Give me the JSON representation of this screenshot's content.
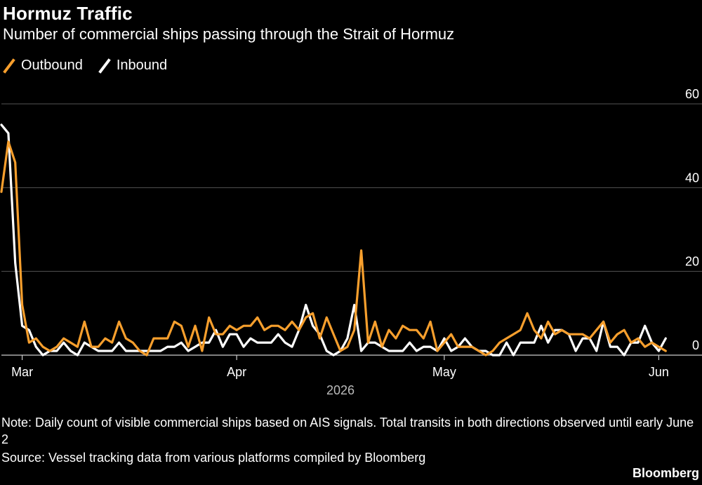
{
  "title": "Hormuz Traffic",
  "subtitle": "Number of commercial ships passing through the Strait of Hormuz",
  "note": "Note: Daily count of visible commercial ships based on AIS signals. Total transits in both directions observed until early June 2",
  "source": "Source: Vessel tracking data from various platforms compiled by Bloomberg",
  "brand": "Bloomberg",
  "colors": {
    "background": "#000000",
    "outbound": "#f79f2d",
    "inbound": "#ffffff",
    "grid": "#555555",
    "axis": "#cccccc"
  },
  "chart_data": {
    "type": "line",
    "title": "Hormuz Traffic",
    "subtitle": "Number of commercial ships passing through the Strait of Hormuz",
    "x_start": "2026-02-26",
    "x_end": "2026-06-04",
    "xtick_labels": [
      {
        "date": "2026-03-01",
        "label": "Mar"
      },
      {
        "date": "2026-04-01",
        "label": "Apr"
      },
      {
        "date": "2026-05-01",
        "label": "May"
      },
      {
        "date": "2026-06-01",
        "label": "Jun"
      }
    ],
    "year_label": "2026",
    "ylim": [
      0,
      60
    ],
    "yticks": [
      0,
      20,
      40,
      60
    ],
    "grid": true,
    "legend_position": "top-left",
    "series": [
      {
        "name": "Outbound",
        "color": "#f79f2d",
        "x": [
          "2026-02-26",
          "2026-02-27",
          "2026-02-28",
          "2026-03-01",
          "2026-03-02",
          "2026-03-03",
          "2026-03-04",
          "2026-03-05",
          "2026-03-06",
          "2026-03-07",
          "2026-03-08",
          "2026-03-09",
          "2026-03-10",
          "2026-03-11",
          "2026-03-12",
          "2026-03-13",
          "2026-03-14",
          "2026-03-15",
          "2026-03-16",
          "2026-03-17",
          "2026-03-18",
          "2026-03-19",
          "2026-03-20",
          "2026-03-21",
          "2026-03-22",
          "2026-03-23",
          "2026-03-24",
          "2026-03-25",
          "2026-03-26",
          "2026-03-27",
          "2026-03-28",
          "2026-03-29",
          "2026-03-30",
          "2026-03-31",
          "2026-04-01",
          "2026-04-02",
          "2026-04-03",
          "2026-04-04",
          "2026-04-05",
          "2026-04-06",
          "2026-04-07",
          "2026-04-08",
          "2026-04-09",
          "2026-04-10",
          "2026-04-11",
          "2026-04-12",
          "2026-04-13",
          "2026-04-14",
          "2026-04-15",
          "2026-04-16",
          "2026-04-17",
          "2026-04-18",
          "2026-04-19",
          "2026-04-20",
          "2026-04-21",
          "2026-04-22",
          "2026-04-23",
          "2026-04-24",
          "2026-04-25",
          "2026-04-26",
          "2026-04-27",
          "2026-04-28",
          "2026-04-29",
          "2026-04-30",
          "2026-05-01",
          "2026-05-02",
          "2026-05-03",
          "2026-05-04",
          "2026-05-05",
          "2026-05-06",
          "2026-05-07",
          "2026-05-08",
          "2026-05-09",
          "2026-05-10",
          "2026-05-11",
          "2026-05-12",
          "2026-05-13",
          "2026-05-14",
          "2026-05-15",
          "2026-05-16",
          "2026-05-17",
          "2026-05-18",
          "2026-05-19",
          "2026-05-20",
          "2026-05-21",
          "2026-05-22",
          "2026-05-23",
          "2026-05-24",
          "2026-05-25",
          "2026-05-26",
          "2026-05-27",
          "2026-05-28",
          "2026-05-29",
          "2026-05-30",
          "2026-05-31",
          "2026-06-01",
          "2026-06-02"
        ],
        "values": [
          39,
          51,
          46,
          12,
          3,
          4,
          2,
          1,
          2,
          4,
          3,
          2,
          8,
          2,
          2,
          4,
          3,
          8,
          4,
          3,
          1,
          0,
          4,
          4,
          4,
          8,
          7,
          2,
          7,
          1,
          9,
          5,
          5,
          7,
          6,
          7,
          7,
          9,
          6,
          7,
          7,
          6,
          8,
          6,
          9,
          10,
          4,
          9,
          5,
          1,
          2,
          6,
          25,
          3,
          8,
          2,
          6,
          4,
          7,
          6,
          6,
          4,
          8,
          1,
          3,
          5,
          2,
          2,
          2,
          1,
          0,
          1,
          3,
          4,
          5,
          6,
          10,
          6,
          4,
          8,
          5,
          6,
          5,
          5,
          5,
          4,
          6,
          8,
          3,
          5,
          6,
          3,
          4,
          2,
          3,
          2,
          1
        ]
      },
      {
        "name": "Inbound",
        "color": "#ffffff",
        "x": [
          "2026-02-26",
          "2026-02-27",
          "2026-02-28",
          "2026-03-01",
          "2026-03-02",
          "2026-03-03",
          "2026-03-04",
          "2026-03-05",
          "2026-03-06",
          "2026-03-07",
          "2026-03-08",
          "2026-03-09",
          "2026-03-10",
          "2026-03-11",
          "2026-03-12",
          "2026-03-13",
          "2026-03-14",
          "2026-03-15",
          "2026-03-16",
          "2026-03-17",
          "2026-03-18",
          "2026-03-19",
          "2026-03-20",
          "2026-03-21",
          "2026-03-22",
          "2026-03-23",
          "2026-03-24",
          "2026-03-25",
          "2026-03-26",
          "2026-03-27",
          "2026-03-28",
          "2026-03-29",
          "2026-03-30",
          "2026-03-31",
          "2026-04-01",
          "2026-04-02",
          "2026-04-03",
          "2026-04-04",
          "2026-04-05",
          "2026-04-06",
          "2026-04-07",
          "2026-04-08",
          "2026-04-09",
          "2026-04-10",
          "2026-04-11",
          "2026-04-12",
          "2026-04-13",
          "2026-04-14",
          "2026-04-15",
          "2026-04-16",
          "2026-04-17",
          "2026-04-18",
          "2026-04-19",
          "2026-04-20",
          "2026-04-21",
          "2026-04-22",
          "2026-04-23",
          "2026-04-24",
          "2026-04-25",
          "2026-04-26",
          "2026-04-27",
          "2026-04-28",
          "2026-04-29",
          "2026-04-30",
          "2026-05-01",
          "2026-05-02",
          "2026-05-03",
          "2026-05-04",
          "2026-05-05",
          "2026-05-06",
          "2026-05-07",
          "2026-05-08",
          "2026-05-09",
          "2026-05-10",
          "2026-05-11",
          "2026-05-12",
          "2026-05-13",
          "2026-05-14",
          "2026-05-15",
          "2026-05-16",
          "2026-05-17",
          "2026-05-18",
          "2026-05-19",
          "2026-05-20",
          "2026-05-21",
          "2026-05-22",
          "2026-05-23",
          "2026-05-24",
          "2026-05-25",
          "2026-05-26",
          "2026-05-27",
          "2026-05-28",
          "2026-05-29",
          "2026-05-30",
          "2026-05-31",
          "2026-06-01",
          "2026-06-02"
        ],
        "values": [
          55,
          53,
          22,
          7,
          6,
          2,
          0,
          1,
          1,
          3,
          1,
          0,
          3,
          2,
          1,
          1,
          1,
          3,
          1,
          1,
          1,
          1,
          1,
          1,
          2,
          2,
          3,
          1,
          2,
          3,
          3,
          6,
          2,
          5,
          5,
          2,
          4,
          3,
          3,
          3,
          5,
          3,
          2,
          6,
          12,
          7,
          5,
          1,
          0,
          1,
          4,
          12,
          1,
          3,
          3,
          2,
          1,
          1,
          1,
          3,
          1,
          2,
          2,
          1,
          4,
          1,
          2,
          4,
          2,
          1,
          1,
          0,
          0,
          3,
          0,
          3,
          3,
          3,
          7,
          3,
          6,
          6,
          5,
          1,
          4,
          4,
          1,
          8,
          2,
          2,
          0,
          3,
          3,
          7,
          3,
          1,
          4
        ]
      }
    ]
  }
}
